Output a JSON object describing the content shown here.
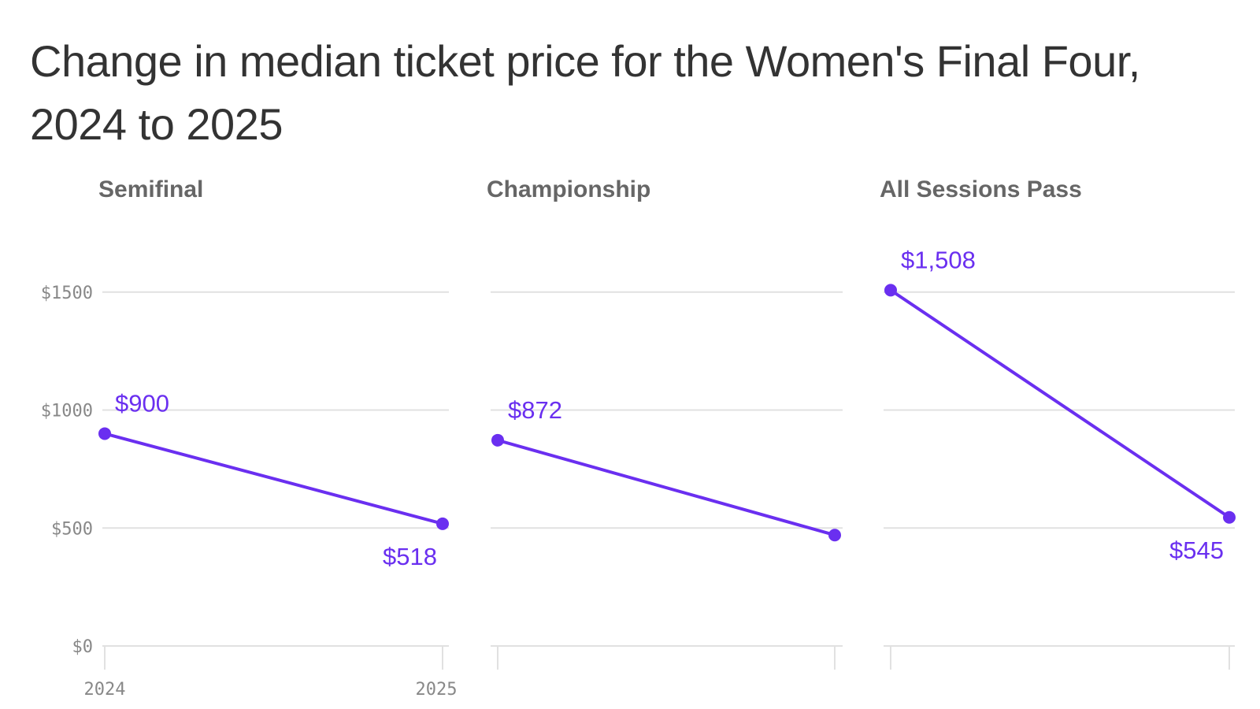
{
  "chart_data": {
    "type": "line",
    "title": "Change in median ticket price for the Women's Final Four, 2024 to 2025",
    "x": [
      "2024",
      "2025"
    ],
    "y_ticks": [
      "$0",
      "$500",
      "$1000",
      "$1500"
    ],
    "ylim": [
      0,
      1700
    ],
    "grid": true,
    "line_color": "#6a2ff0",
    "panels": [
      {
        "title": "Semifinal",
        "values": [
          900,
          518
        ],
        "point_labels": [
          "$900",
          "$518"
        ]
      },
      {
        "title": "Championship",
        "values": [
          872,
          470
        ],
        "point_labels": [
          "$872",
          ""
        ]
      },
      {
        "title": "All Sessions Pass",
        "values": [
          1508,
          545
        ],
        "point_labels": [
          "$1,508",
          "$545"
        ]
      }
    ]
  }
}
